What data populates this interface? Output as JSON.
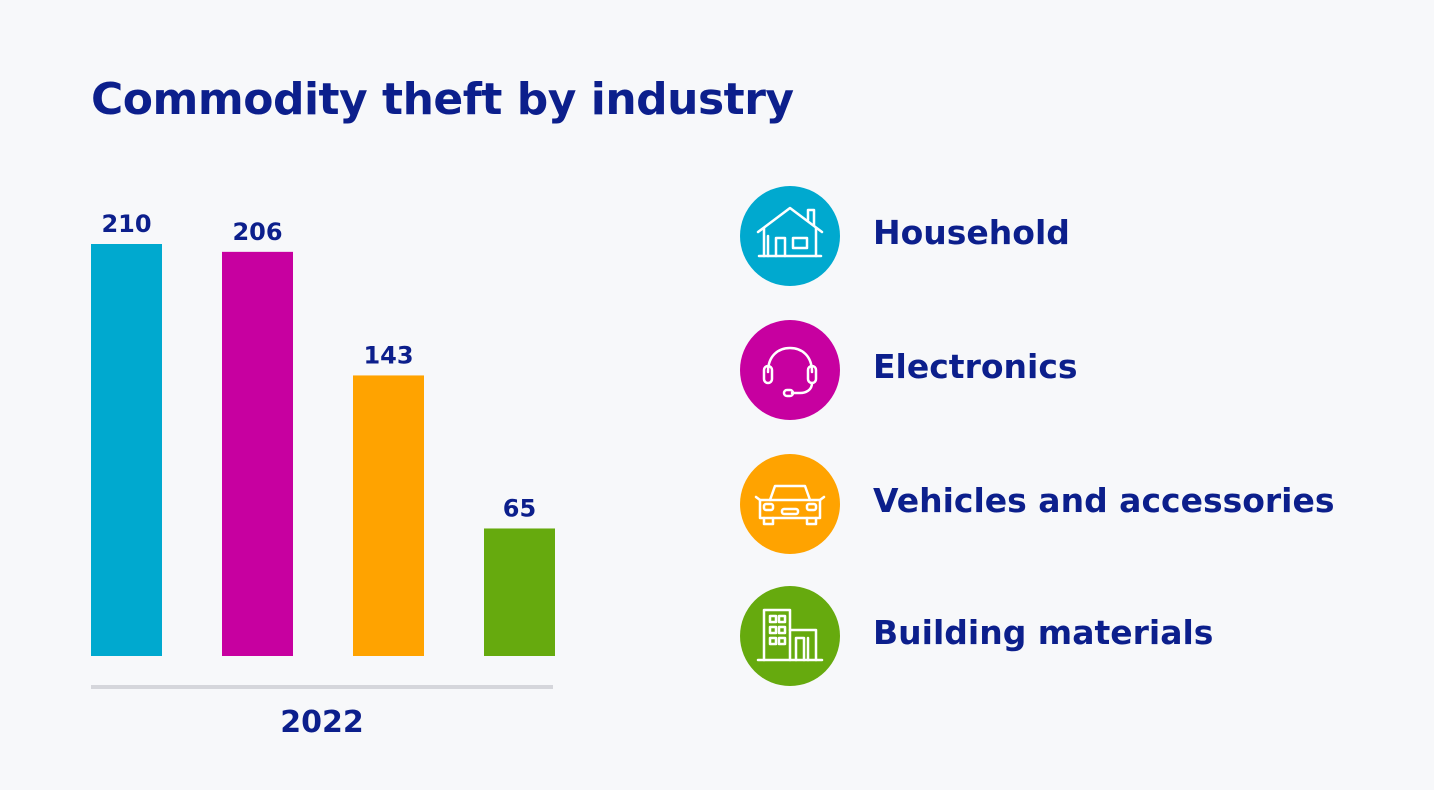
{
  "title": "Commodity theft by industry",
  "chart_data": {
    "type": "bar",
    "title": "Commodity theft by industry",
    "xlabel": "2022",
    "ylabel": "",
    "categories": [
      "Household",
      "Electronics",
      "Vehicles and accessories",
      "Building materials"
    ],
    "values": [
      210,
      206,
      143,
      65
    ],
    "colors": [
      "#00a9cf",
      "#c700a0",
      "#ffa300",
      "#66aa0e"
    ],
    "ylim": [
      0,
      210
    ],
    "grid": false,
    "legend": "right"
  },
  "legend": {
    "items": [
      {
        "label": "Household",
        "icon": "house-icon",
        "color": "#00a9cf"
      },
      {
        "label": "Electronics",
        "icon": "headset-icon",
        "color": "#c700a0"
      },
      {
        "label": "Vehicles and accessories",
        "icon": "car-icon",
        "color": "#ffa300"
      },
      {
        "label": "Building materials",
        "icon": "building-icon",
        "color": "#66aa0e"
      }
    ]
  }
}
